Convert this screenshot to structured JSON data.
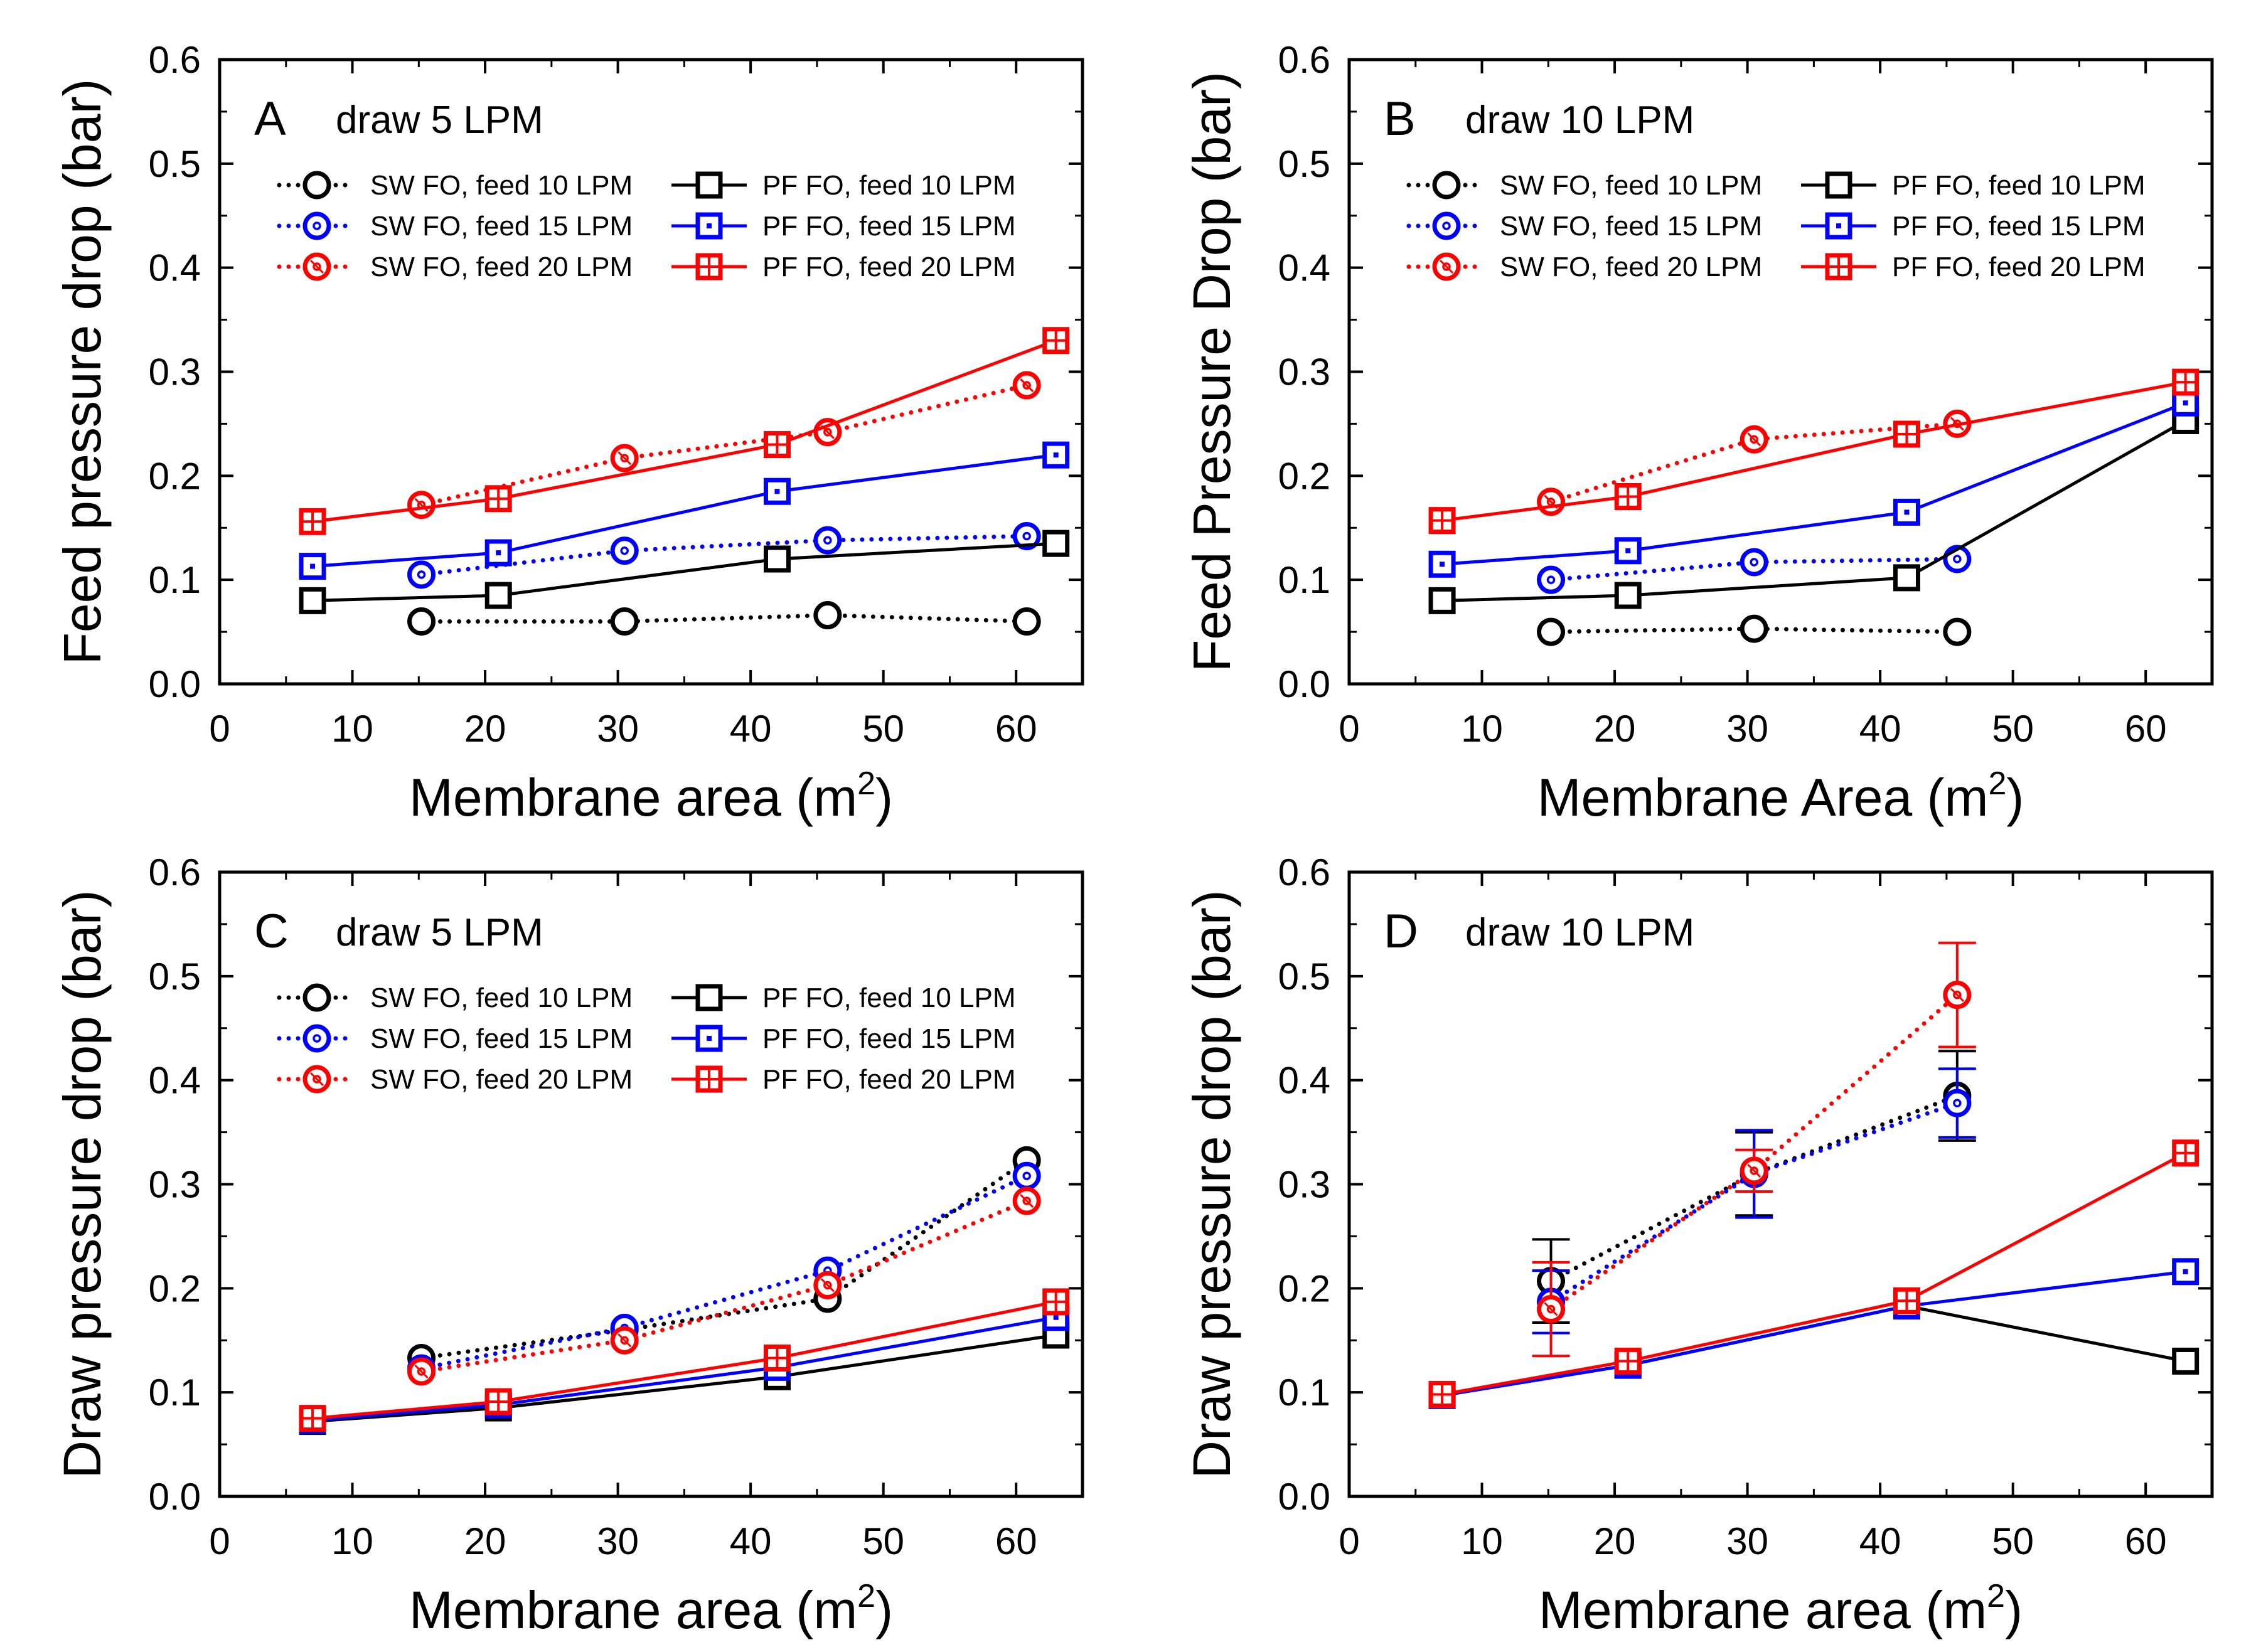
{
  "colors": {
    "black": "#000000",
    "blue": "#0000ff",
    "red": "#ff0000"
  },
  "chart_data": [
    {
      "id": "A",
      "type": "line",
      "panel_letter": "A",
      "title": "draw 5 LPM",
      "xlabel": "Membrane area (m",
      "xlabel_sup": "2",
      "xlabel_tail": ")",
      "ylabel": "Feed pressure drop (bar)",
      "xlim": [
        0,
        65
      ],
      "ylim": [
        0,
        0.6
      ],
      "xticks": [
        0,
        10,
        20,
        30,
        40,
        50,
        60
      ],
      "yticks": [
        0.0,
        0.1,
        0.2,
        0.3,
        0.4,
        0.5,
        0.6
      ],
      "grid": false,
      "legend_position": "upper-left",
      "series": [
        {
          "name": "SW FO, feed 10 LPM",
          "color": "black",
          "marker": "circle",
          "dash": "dotted",
          "x": [
            15.2,
            30.5,
            45.8,
            60.8
          ],
          "y": [
            0.06,
            0.06,
            0.066,
            0.06
          ]
        },
        {
          "name": "SW FO, feed 15 LPM",
          "color": "blue",
          "marker": "circle",
          "dash": "dotted",
          "x": [
            15.2,
            30.5,
            45.8,
            60.8
          ],
          "y": [
            0.105,
            0.128,
            0.138,
            0.142
          ]
        },
        {
          "name": "SW FO, feed 20 LPM",
          "color": "red",
          "marker": "circle",
          "dash": "dotted",
          "x": [
            15.2,
            30.5,
            45.8,
            60.8
          ],
          "y": [
            0.172,
            0.217,
            0.242,
            0.287
          ]
        },
        {
          "name": "PF FO, feed 10 LPM",
          "color": "black",
          "marker": "square",
          "dash": "solid",
          "x": [
            7,
            21,
            42,
            63
          ],
          "y": [
            0.08,
            0.085,
            0.12,
            0.135
          ]
        },
        {
          "name": "PF FO, feed 15 LPM",
          "color": "blue",
          "marker": "square",
          "dash": "solid",
          "x": [
            7,
            21,
            42,
            63
          ],
          "y": [
            0.113,
            0.126,
            0.185,
            0.22
          ]
        },
        {
          "name": "PF FO, feed 20 LPM",
          "color": "red",
          "marker": "square",
          "dash": "solid",
          "x": [
            7,
            21,
            42,
            63
          ],
          "y": [
            0.156,
            0.178,
            0.23,
            0.33
          ]
        }
      ]
    },
    {
      "id": "B",
      "type": "line",
      "panel_letter": "B",
      "title": "draw 10 LPM",
      "xlabel": "Membrane Area (m",
      "xlabel_sup": "2",
      "xlabel_tail": ")",
      "ylabel": "Feed Pressure Drop (bar)",
      "xlim": [
        0,
        65
      ],
      "ylim": [
        0,
        0.6
      ],
      "xticks": [
        0,
        10,
        20,
        30,
        40,
        50,
        60
      ],
      "yticks": [
        0.0,
        0.1,
        0.2,
        0.3,
        0.4,
        0.5,
        0.6
      ],
      "grid": false,
      "legend_position": "upper-left",
      "series": [
        {
          "name": "SW FO, feed 10 LPM",
          "color": "black",
          "marker": "circle",
          "dash": "dotted",
          "x": [
            15.2,
            30.5,
            45.8
          ],
          "y": [
            0.05,
            0.053,
            0.05
          ]
        },
        {
          "name": "SW FO, feed 15 LPM",
          "color": "blue",
          "marker": "circle",
          "dash": "dotted",
          "x": [
            15.2,
            30.5,
            45.8
          ],
          "y": [
            0.1,
            0.117,
            0.12
          ]
        },
        {
          "name": "SW FO, feed 20 LPM",
          "color": "red",
          "marker": "circle",
          "dash": "dotted",
          "x": [
            15.2,
            30.5,
            45.8
          ],
          "y": [
            0.175,
            0.235,
            0.25
          ]
        },
        {
          "name": "PF FO, feed 10 LPM",
          "color": "black",
          "marker": "square",
          "dash": "solid",
          "x": [
            7,
            21,
            42,
            63
          ],
          "y": [
            0.08,
            0.085,
            0.102,
            0.253
          ]
        },
        {
          "name": "PF FO, feed 15 LPM",
          "color": "blue",
          "marker": "square",
          "dash": "solid",
          "x": [
            7,
            21,
            42,
            63
          ],
          "y": [
            0.115,
            0.128,
            0.165,
            0.27
          ]
        },
        {
          "name": "PF FO, feed 20 LPM",
          "color": "red",
          "marker": "square",
          "dash": "solid",
          "x": [
            7,
            21,
            42,
            63
          ],
          "y": [
            0.157,
            0.18,
            0.24,
            0.29
          ]
        }
      ]
    },
    {
      "id": "C",
      "type": "line",
      "panel_letter": "C",
      "title": "draw 5 LPM",
      "xlabel": "Membrane area (m",
      "xlabel_sup": "2",
      "xlabel_tail": ")",
      "ylabel": "Draw pressure drop (bar)",
      "xlim": [
        0,
        65
      ],
      "ylim": [
        0,
        0.6
      ],
      "xticks": [
        0,
        10,
        20,
        30,
        40,
        50,
        60
      ],
      "yticks": [
        0.0,
        0.1,
        0.2,
        0.3,
        0.4,
        0.5,
        0.6
      ],
      "grid": false,
      "legend_position": "upper-left",
      "series": [
        {
          "name": "SW FO, feed 10 LPM",
          "color": "black",
          "marker": "circle",
          "dash": "dotted",
          "x": [
            15.2,
            30.5,
            45.8,
            60.8
          ],
          "y": [
            0.133,
            0.16,
            0.19,
            0.323
          ]
        },
        {
          "name": "SW FO, feed 15 LPM",
          "color": "blue",
          "marker": "circle",
          "dash": "dotted",
          "x": [
            15.2,
            30.5,
            45.8,
            60.8
          ],
          "y": [
            0.123,
            0.162,
            0.217,
            0.308
          ]
        },
        {
          "name": "SW FO, feed 20 LPM",
          "color": "red",
          "marker": "circle",
          "dash": "dotted",
          "x": [
            15.2,
            30.5,
            45.8,
            60.8
          ],
          "y": [
            0.12,
            0.15,
            0.203,
            0.284
          ]
        },
        {
          "name": "PF FO, feed 10 LPM",
          "color": "black",
          "marker": "square",
          "dash": "solid",
          "x": [
            7,
            21,
            42,
            63
          ],
          "y": [
            0.072,
            0.085,
            0.115,
            0.155
          ]
        },
        {
          "name": "PF FO, feed 15 LPM",
          "color": "blue",
          "marker": "square",
          "dash": "solid",
          "x": [
            7,
            21,
            42,
            63
          ],
          "y": [
            0.073,
            0.088,
            0.124,
            0.172
          ]
        },
        {
          "name": "PF FO, feed 20 LPM",
          "color": "red",
          "marker": "square",
          "dash": "solid",
          "x": [
            7,
            21,
            42,
            63
          ],
          "y": [
            0.075,
            0.091,
            0.133,
            0.187
          ]
        }
      ]
    },
    {
      "id": "D",
      "type": "line",
      "panel_letter": "D",
      "title": "draw 10 LPM",
      "xlabel": "Membrane area (m",
      "xlabel_sup": "2",
      "xlabel_tail": ")",
      "ylabel": "Draw pressure drop (bar)",
      "xlim": [
        0,
        65
      ],
      "ylim": [
        0,
        0.6
      ],
      "xticks": [
        0,
        10,
        20,
        30,
        40,
        50,
        60
      ],
      "yticks": [
        0.0,
        0.1,
        0.2,
        0.3,
        0.4,
        0.5,
        0.6
      ],
      "grid": false,
      "legend_position": "none",
      "series": [
        {
          "name": "SW FO, feed 10 LPM",
          "color": "black",
          "marker": "circle",
          "dash": "dotted",
          "x": [
            15.2,
            30.5,
            45.8
          ],
          "y": [
            0.207,
            0.31,
            0.385
          ],
          "err": [
            0.04,
            0.04,
            0.043
          ]
        },
        {
          "name": "SW FO, feed 15 LPM",
          "color": "blue",
          "marker": "circle",
          "dash": "dotted",
          "x": [
            15.2,
            30.5,
            45.8
          ],
          "y": [
            0.187,
            0.31,
            0.378
          ],
          "err": [
            0.03,
            0.042,
            0.033
          ]
        },
        {
          "name": "SW FO, feed 20 LPM",
          "color": "red",
          "marker": "circle",
          "dash": "dotted",
          "x": [
            15.2,
            30.5,
            45.8
          ],
          "y": [
            0.18,
            0.313,
            0.482
          ],
          "err": [
            0.045,
            0.02,
            0.05
          ]
        },
        {
          "name": "PF FO, feed 10 LPM",
          "color": "black",
          "marker": "square",
          "dash": "solid",
          "x": [
            7,
            21,
            42,
            63
          ],
          "y": [
            0.097,
            0.126,
            0.183,
            0.13
          ]
        },
        {
          "name": "PF FO, feed 15 LPM",
          "color": "blue",
          "marker": "square",
          "dash": "solid",
          "x": [
            7,
            21,
            42,
            63
          ],
          "y": [
            0.097,
            0.126,
            0.183,
            0.216
          ]
        },
        {
          "name": "PF FO, feed 20 LPM",
          "color": "red",
          "marker": "square",
          "dash": "solid",
          "x": [
            7,
            21,
            42,
            63
          ],
          "y": [
            0.098,
            0.13,
            0.188,
            0.33
          ]
        }
      ]
    }
  ]
}
